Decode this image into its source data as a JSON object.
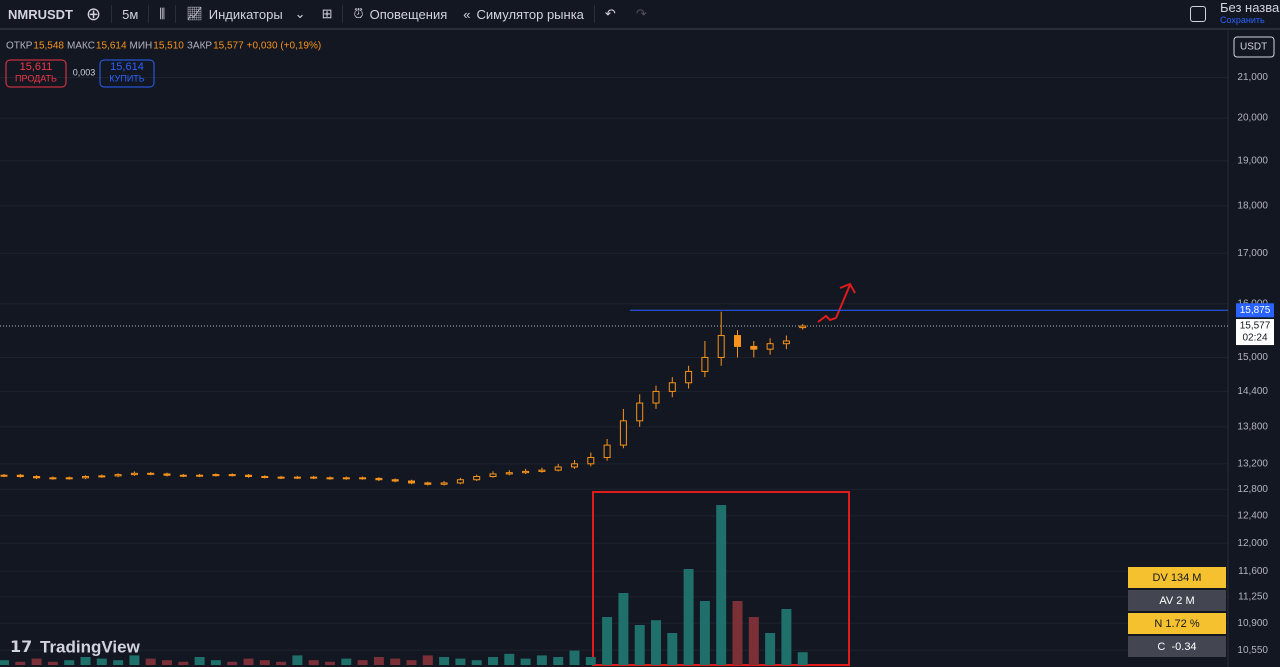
{
  "toolbar": {
    "symbol": "NMRUSDT",
    "interval": "5м",
    "indicators": "Индикаторы",
    "alerts": "Оповещения",
    "replay": "Симулятор рынка",
    "layout_name": "Без названия",
    "save": "Сохранить"
  },
  "legend": {
    "items": [
      {
        "label": "ОТКР",
        "value": "15,548"
      },
      {
        "label": "МАКС",
        "value": "15,614"
      },
      {
        "label": "МИН",
        "value": "15,510"
      },
      {
        "label": "ЗАКР",
        "value": "15,577"
      }
    ],
    "change": "+0,030 (+0,19%)"
  },
  "trade": {
    "sell_price": "15,611",
    "sell_label": "ПРОДАТЬ",
    "spread": "0,003",
    "buy_price": "15,614",
    "buy_label": "КУПИТЬ"
  },
  "indicator_box": {
    "rows": [
      "DV 134 M",
      "AV 2 M",
      "N 1.72 %",
      "C  -0.34"
    ]
  },
  "logo": "TradingView",
  "chart_data": {
    "type": "candlestick",
    "log_scale": true,
    "currency": "USDT",
    "up_color": "#f7931a",
    "down_color": "#f7931a",
    "volume_up_color": "#1f6f6a",
    "volume_down_color": "#7b3038",
    "ylim": [
      10.34,
      22.18
    ],
    "yticks": [
      {
        "value": 21,
        "label": "21,000"
      },
      {
        "value": 20,
        "label": "20,000"
      },
      {
        "value": 19,
        "label": "19,000"
      },
      {
        "value": 18,
        "label": "18,000"
      },
      {
        "value": 17,
        "label": "17,000"
      },
      {
        "value": 16,
        "label": "16,000"
      },
      {
        "value": 15,
        "label": "15,000"
      },
      {
        "value": 14.4,
        "label": "14,400"
      },
      {
        "value": 13.8,
        "label": "13,800"
      },
      {
        "value": 13.2,
        "label": "13,200"
      },
      {
        "value": 12.8,
        "label": "12,800"
      },
      {
        "value": 12.4,
        "label": "12,400"
      },
      {
        "value": 12,
        "label": "12,000"
      },
      {
        "value": 11.6,
        "label": "11,600"
      },
      {
        "value": 11.25,
        "label": "11,250"
      },
      {
        "value": 10.9,
        "label": "10,900"
      },
      {
        "value": 10.55,
        "label": "10,550"
      }
    ],
    "open": [
      13.01,
      13.02,
      13.0,
      12.98,
      12.97,
      12.98,
      13.0,
      13.01,
      13.03,
      13.05,
      13.04,
      13.02,
      13.01,
      13.02,
      13.03,
      13.02,
      13.0,
      12.99,
      12.98,
      12.99,
      12.98,
      12.97,
      12.98,
      12.97,
      12.95,
      12.93,
      12.9,
      12.88,
      12.9,
      12.95,
      13.0,
      13.04,
      13.06,
      13.08,
      13.1,
      13.15,
      13.2,
      13.3,
      13.5,
      13.9,
      14.2,
      14.4,
      14.55,
      14.75,
      15.0,
      15.4,
      15.2,
      15.15,
      15.25,
      15.548
    ],
    "high": [
      13.04,
      13.04,
      13.02,
      13.0,
      13.0,
      13.02,
      13.03,
      13.05,
      13.08,
      13.07,
      13.06,
      13.04,
      13.04,
      13.05,
      13.05,
      13.04,
      13.02,
      13.01,
      13.01,
      13.01,
      13.0,
      13.0,
      13.0,
      12.99,
      12.97,
      12.95,
      12.92,
      12.93,
      12.98,
      13.03,
      13.08,
      13.1,
      13.12,
      13.14,
      13.2,
      13.26,
      13.38,
      13.6,
      14.1,
      14.35,
      14.5,
      14.65,
      14.85,
      15.3,
      15.85,
      15.5,
      15.3,
      15.35,
      15.4,
      15.614
    ],
    "low": [
      12.99,
      12.98,
      12.96,
      12.95,
      12.95,
      12.96,
      12.98,
      12.99,
      13.01,
      13.02,
      13.0,
      12.99,
      12.99,
      13.0,
      13.0,
      12.98,
      12.97,
      12.96,
      12.96,
      12.96,
      12.95,
      12.95,
      12.95,
      12.93,
      12.91,
      12.88,
      12.86,
      12.86,
      12.88,
      12.93,
      12.98,
      13.02,
      13.04,
      13.06,
      13.08,
      13.12,
      13.16,
      13.25,
      13.45,
      13.8,
      14.1,
      14.3,
      14.45,
      14.65,
      14.85,
      15.0,
      15.0,
      15.05,
      15.15,
      15.51
    ],
    "close": [
      13.02,
      13.0,
      12.98,
      12.97,
      12.98,
      13.0,
      13.01,
      13.03,
      13.05,
      13.04,
      13.02,
      13.01,
      13.02,
      13.03,
      13.02,
      13.0,
      12.99,
      12.98,
      12.99,
      12.98,
      12.97,
      12.98,
      12.97,
      12.95,
      12.93,
      12.9,
      12.88,
      12.9,
      12.95,
      13.0,
      13.04,
      13.06,
      13.08,
      13.1,
      13.15,
      13.2,
      13.3,
      13.5,
      13.9,
      14.2,
      14.4,
      14.55,
      14.75,
      15.0,
      15.4,
      15.2,
      15.15,
      15.25,
      15.3,
      15.577
    ],
    "volume": [
      3,
      2,
      4,
      2,
      3,
      5,
      4,
      3,
      6,
      4,
      3,
      2,
      5,
      3,
      2,
      4,
      3,
      2,
      6,
      3,
      2,
      4,
      3,
      5,
      4,
      3,
      6,
      5,
      4,
      3,
      5,
      7,
      4,
      6,
      5,
      9,
      5,
      30,
      45,
      25,
      28,
      20,
      60,
      40,
      100,
      40,
      30,
      20,
      35,
      8
    ],
    "level": {
      "value": 15.875,
      "label": "15,875"
    },
    "last_price": {
      "value": 15.577,
      "label": "15,577"
    },
    "countdown": "02:24"
  }
}
